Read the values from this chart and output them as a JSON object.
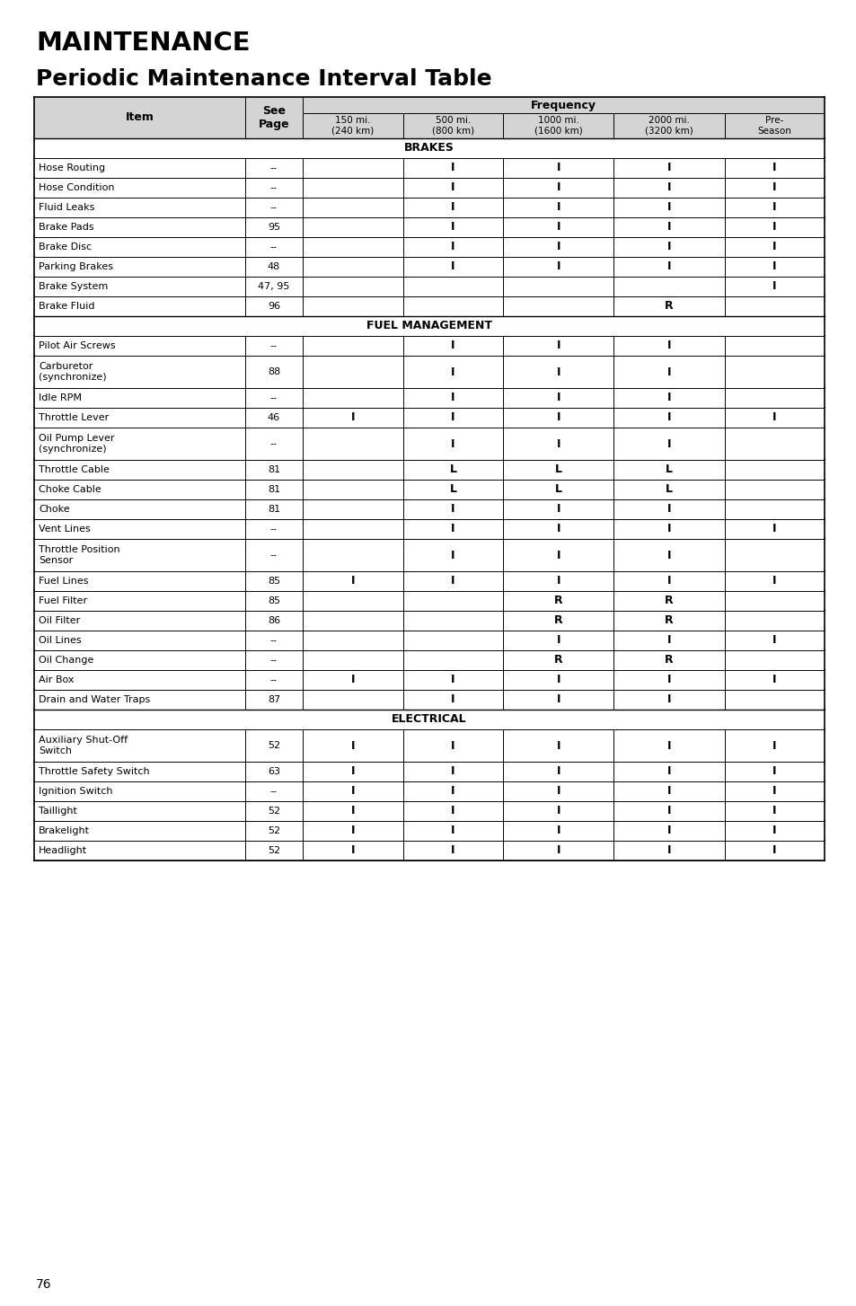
{
  "title1": "MAINTENANCE",
  "title2": "Periodic Maintenance Interval Table",
  "page_number": "76",
  "header_bg": "#d4d4d4",
  "bg_color": "#ffffff",
  "text_color": "#000000",
  "sections": [
    {
      "label": "BRAKES",
      "rows": [
        [
          "Hose Routing",
          "--",
          "",
          "I",
          "I",
          "I",
          "I"
        ],
        [
          "Hose Condition",
          "--",
          "",
          "I",
          "I",
          "I",
          "I"
        ],
        [
          "Fluid Leaks",
          "--",
          "",
          "I",
          "I",
          "I",
          "I"
        ],
        [
          "Brake Pads",
          "95",
          "",
          "I",
          "I",
          "I",
          "I"
        ],
        [
          "Brake Disc",
          "--",
          "",
          "I",
          "I",
          "I",
          "I"
        ],
        [
          "Parking Brakes",
          "48",
          "",
          "I",
          "I",
          "I",
          "I"
        ],
        [
          "Brake System",
          "47, 95",
          "",
          "",
          "",
          "",
          "I"
        ],
        [
          "Brake Fluid",
          "96",
          "",
          "",
          "",
          "R",
          ""
        ]
      ]
    },
    {
      "label": "FUEL MANAGEMENT",
      "rows": [
        [
          "Pilot Air Screws",
          "--",
          "",
          "I",
          "I",
          "I",
          ""
        ],
        [
          "Carburetor\n(synchronize)",
          "88",
          "",
          "I",
          "I",
          "I",
          ""
        ],
        [
          "Idle RPM",
          "--",
          "",
          "I",
          "I",
          "I",
          ""
        ],
        [
          "Throttle Lever",
          "46",
          "I",
          "I",
          "I",
          "I",
          "I"
        ],
        [
          "Oil Pump Lever\n(synchronize)",
          "--",
          "",
          "I",
          "I",
          "I",
          ""
        ],
        [
          "Throttle Cable",
          "81",
          "",
          "L",
          "L",
          "L",
          ""
        ],
        [
          "Choke Cable",
          "81",
          "",
          "L",
          "L",
          "L",
          ""
        ],
        [
          "Choke",
          "81",
          "",
          "I",
          "I",
          "I",
          ""
        ],
        [
          "Vent Lines",
          "--",
          "",
          "I",
          "I",
          "I",
          "I"
        ],
        [
          "Throttle Position\nSensor",
          "--",
          "",
          "I",
          "I",
          "I",
          ""
        ],
        [
          "Fuel Lines",
          "85",
          "I",
          "I",
          "I",
          "I",
          "I"
        ],
        [
          "Fuel Filter",
          "85",
          "",
          "",
          "R",
          "R",
          ""
        ],
        [
          "Oil Filter",
          "86",
          "",
          "",
          "R",
          "R",
          ""
        ],
        [
          "Oil Lines",
          "--",
          "",
          "",
          "I",
          "I",
          "I"
        ],
        [
          "Oil Change",
          "--",
          "",
          "",
          "R",
          "R",
          ""
        ],
        [
          "Air Box",
          "--",
          "I",
          "I",
          "I",
          "I",
          "I"
        ],
        [
          "Drain and Water Traps",
          "87",
          "",
          "I",
          "I",
          "I",
          ""
        ]
      ]
    },
    {
      "label": "ELECTRICAL",
      "rows": [
        [
          "Auxiliary Shut-Off\nSwitch",
          "52",
          "I",
          "I",
          "I",
          "I",
          "I"
        ],
        [
          "Throttle Safety Switch",
          "63",
          "I",
          "I",
          "I",
          "I",
          "I"
        ],
        [
          "Ignition Switch",
          "--",
          "I",
          "I",
          "I",
          "I",
          "I"
        ],
        [
          "Taillight",
          "52",
          "I",
          "I",
          "I",
          "I",
          "I"
        ],
        [
          "Brakelight",
          "52",
          "I",
          "I",
          "I",
          "I",
          "I"
        ],
        [
          "Headlight",
          "52",
          "I",
          "I",
          "I",
          "I",
          "I"
        ]
      ]
    }
  ]
}
